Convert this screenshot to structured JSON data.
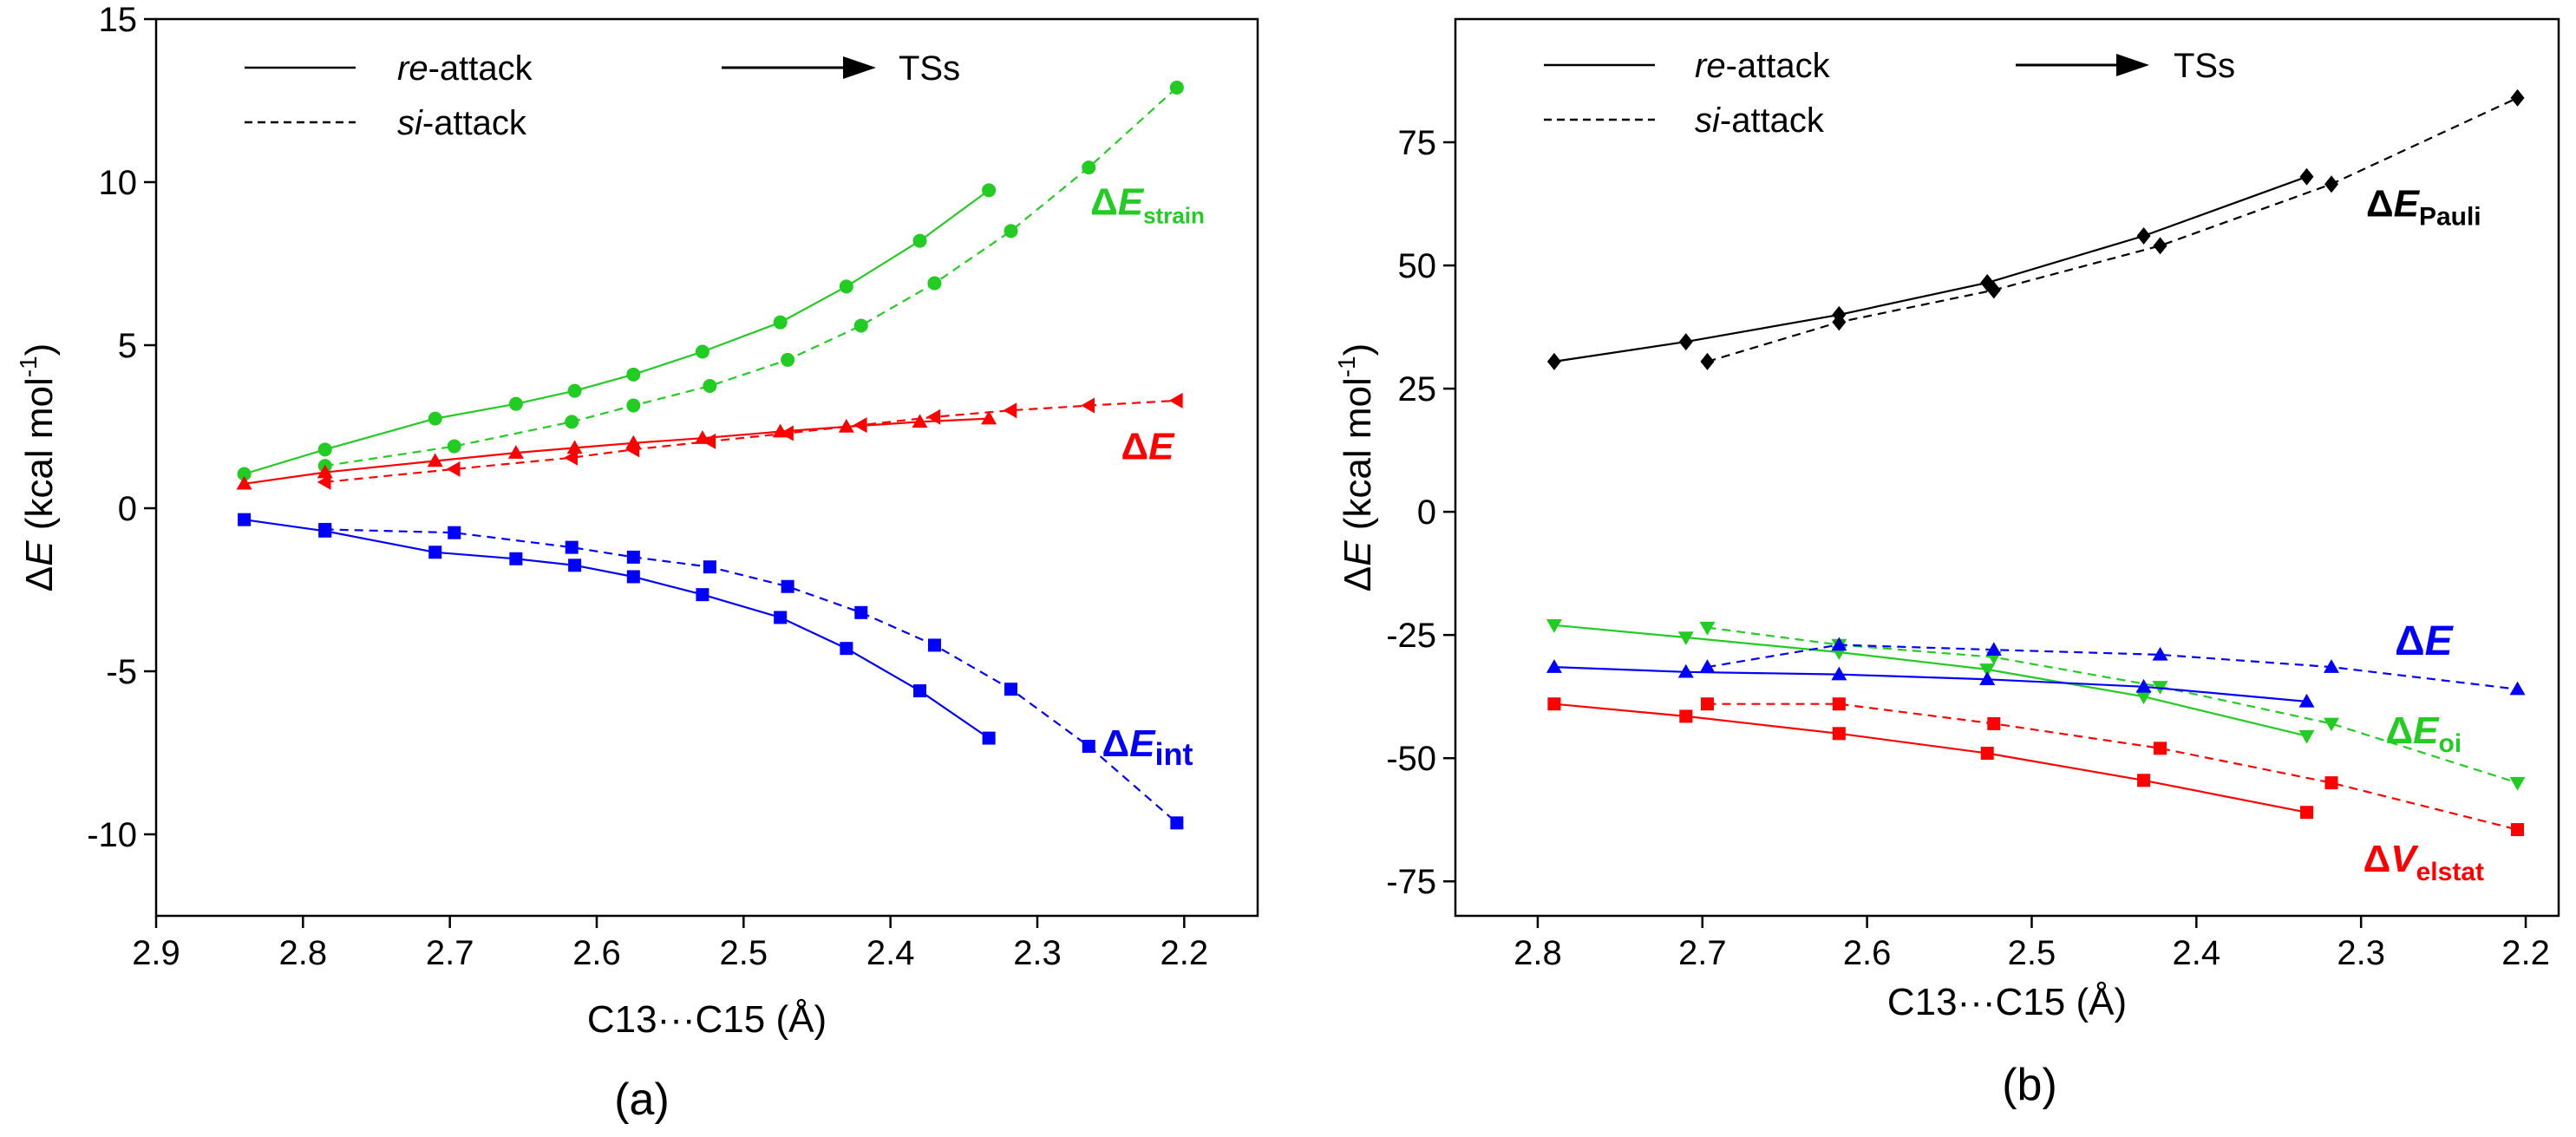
{
  "chart_data": [
    {
      "type": "line",
      "panel_label": "(a)",
      "xlabel": "C13···C15 (Å)",
      "ylabel_parts": [
        "ΔE",
        " (kcal mol",
        "-1",
        ")"
      ],
      "xlim": [
        2.9,
        2.15
      ],
      "ylim": [
        -12.5,
        15
      ],
      "xticks": [
        "2.9",
        "2.8",
        "2.7",
        "2.6",
        "2.5",
        "2.4",
        "2.3",
        "2.2"
      ],
      "xtick_values": [
        2.9,
        2.8,
        2.7,
        2.6,
        2.5,
        2.4,
        2.3,
        2.2
      ],
      "yticks": [
        "-10",
        "-5",
        "0",
        "5",
        "10",
        "15"
      ],
      "ytick_values": [
        -10,
        -5,
        0,
        5,
        10,
        15
      ],
      "legend": {
        "position": "top-left",
        "re_prefix": "re",
        "re_suffix": "-attack",
        "si_prefix": "si",
        "si_suffix": "-attack",
        "arrow_label": "TSs"
      },
      "series": [
        {
          "name": "ΔE_strain (re)",
          "color": "#22cc22",
          "dash": false,
          "marker": "circle",
          "x": [
            2.84,
            2.785,
            2.71,
            2.655,
            2.615,
            2.575,
            2.528,
            2.475,
            2.43,
            2.38,
            2.333
          ],
          "y": [
            1.05,
            1.8,
            2.75,
            3.2,
            3.6,
            4.1,
            4.8,
            5.7,
            6.8,
            8.2,
            9.75
          ]
        },
        {
          "name": "ΔE_strain (si)",
          "color": "#22cc22",
          "dash": true,
          "marker": "circle",
          "x": [
            2.785,
            2.697,
            2.617,
            2.575,
            2.523,
            2.47,
            2.42,
            2.37,
            2.318,
            2.265,
            2.205
          ],
          "y": [
            1.3,
            1.9,
            2.65,
            3.15,
            3.75,
            4.55,
            5.6,
            6.9,
            8.5,
            10.45,
            12.9
          ]
        },
        {
          "name": "ΔE (re)",
          "color": "#ff0000",
          "dash": false,
          "marker": "triangle-up",
          "x": [
            2.84,
            2.785,
            2.71,
            2.655,
            2.615,
            2.575,
            2.528,
            2.475,
            2.43,
            2.38,
            2.333
          ],
          "y": [
            0.75,
            1.1,
            1.45,
            1.7,
            1.85,
            2.0,
            2.15,
            2.35,
            2.5,
            2.65,
            2.75
          ]
        },
        {
          "name": "ΔE (si)",
          "color": "#ff0000",
          "dash": true,
          "marker": "triangle-left",
          "x": [
            2.785,
            2.697,
            2.617,
            2.575,
            2.523,
            2.47,
            2.42,
            2.37,
            2.318,
            2.265,
            2.205
          ],
          "y": [
            0.8,
            1.2,
            1.55,
            1.8,
            2.05,
            2.3,
            2.55,
            2.8,
            3.0,
            3.15,
            3.3
          ]
        },
        {
          "name": "ΔE_int (re)",
          "color": "#0000ff",
          "dash": false,
          "marker": "square",
          "x": [
            2.84,
            2.785,
            2.71,
            2.655,
            2.615,
            2.575,
            2.528,
            2.475,
            2.43,
            2.38,
            2.333
          ],
          "y": [
            -0.35,
            -0.7,
            -1.35,
            -1.55,
            -1.75,
            -2.1,
            -2.65,
            -3.35,
            -4.3,
            -5.6,
            -7.05
          ]
        },
        {
          "name": "ΔE_int (si)",
          "color": "#0000ff",
          "dash": true,
          "marker": "square",
          "x": [
            2.785,
            2.697,
            2.617,
            2.575,
            2.523,
            2.47,
            2.42,
            2.37,
            2.318,
            2.265,
            2.205
          ],
          "y": [
            -0.65,
            -0.75,
            -1.2,
            -1.5,
            -1.8,
            -2.4,
            -3.2,
            -4.2,
            -5.55,
            -7.3,
            -9.65
          ]
        }
      ],
      "series_labels": [
        {
          "main": "ΔE",
          "sub": "strain",
          "color": "#22cc22",
          "at": [
            2.225,
            9.0
          ],
          "size": 44,
          "subsize": 26
        },
        {
          "main": "ΔE",
          "sub": "",
          "color": "#ff0000",
          "at": [
            2.225,
            1.5
          ],
          "size": 44,
          "subsize": 26
        },
        {
          "main": "ΔE",
          "sub": "int",
          "color": "#0000ff",
          "at": [
            2.225,
            -7.6
          ],
          "size": 44,
          "subsize": 36
        }
      ]
    },
    {
      "type": "line",
      "panel_label": "(b)",
      "xlabel": "C13···C15 (Å)",
      "ylabel_parts": [
        "ΔE",
        " (kcal mol",
        "-1",
        ")"
      ],
      "xlim": [
        2.85,
        2.18
      ],
      "ylim": [
        -82,
        100
      ],
      "xticks": [
        "2.8",
        "2.7",
        "2.6",
        "2.5",
        "2.4",
        "2.3",
        "2.2"
      ],
      "xtick_values": [
        2.8,
        2.7,
        2.6,
        2.5,
        2.4,
        2.3,
        2.2
      ],
      "yticks": [
        "-75",
        "-50",
        "-25",
        "0",
        "25",
        "50",
        "75"
      ],
      "ytick_values": [
        -75,
        -50,
        -25,
        0,
        25,
        50,
        75
      ],
      "legend": {
        "position": "top-left",
        "re_prefix": "re",
        "re_suffix": "-attack",
        "si_prefix": "si",
        "si_suffix": "-attack",
        "arrow_label": "TSs"
      },
      "series": [
        {
          "name": "ΔE_Pauli (re)",
          "color": "#000000",
          "dash": false,
          "marker": "diamond",
          "x": [
            2.79,
            2.71,
            2.617,
            2.527,
            2.432,
            2.333
          ],
          "y": [
            30.5,
            34.5,
            40.0,
            46.5,
            56.0,
            68.0
          ]
        },
        {
          "name": "ΔE_Pauli (si)",
          "color": "#000000",
          "dash": true,
          "marker": "diamond",
          "x": [
            2.697,
            2.617,
            2.523,
            2.422,
            2.318,
            2.205
          ],
          "y": [
            30.5,
            38.5,
            45.0,
            54.0,
            66.5,
            84.0
          ]
        },
        {
          "name": "ΔE_oi (re)",
          "color": "#22cc22",
          "dash": false,
          "marker": "triangle-down",
          "x": [
            2.79,
            2.71,
            2.617,
            2.527,
            2.432,
            2.333
          ],
          "y": [
            -23.0,
            -25.5,
            -28.5,
            -32.0,
            -37.5,
            -45.5
          ]
        },
        {
          "name": "ΔE_oi (si)",
          "color": "#22cc22",
          "dash": true,
          "marker": "triangle-down",
          "x": [
            2.697,
            2.617,
            2.523,
            2.422,
            2.318,
            2.205
          ],
          "y": [
            -23.5,
            -27.0,
            -29.5,
            -35.5,
            -43.0,
            -55.0
          ]
        },
        {
          "name": "ΔE (re)",
          "color": "#0000ff",
          "dash": false,
          "marker": "triangle-up",
          "x": [
            2.79,
            2.71,
            2.617,
            2.527,
            2.432,
            2.333
          ],
          "y": [
            -31.5,
            -32.5,
            -33.0,
            -34.0,
            -35.5,
            -38.5
          ]
        },
        {
          "name": "ΔE (si)",
          "color": "#0000ff",
          "dash": true,
          "marker": "triangle-up",
          "x": [
            2.697,
            2.617,
            2.523,
            2.422,
            2.318,
            2.205
          ],
          "y": [
            -31.5,
            -27.0,
            -28.0,
            -29.0,
            -31.5,
            -36.0
          ]
        },
        {
          "name": "ΔV_elstat (re)",
          "color": "#ff0000",
          "dash": false,
          "marker": "square",
          "x": [
            2.79,
            2.71,
            2.617,
            2.527,
            2.432,
            2.333
          ],
          "y": [
            -39.0,
            -41.5,
            -45.0,
            -49.0,
            -54.5,
            -61.0
          ]
        },
        {
          "name": "ΔV_elstat (si)",
          "color": "#ff0000",
          "dash": true,
          "marker": "square",
          "x": [
            2.697,
            2.617,
            2.523,
            2.422,
            2.318,
            2.205
          ],
          "y": [
            -39.0,
            -39.0,
            -43.0,
            -48.0,
            -55.0,
            -64.5
          ]
        }
      ],
      "series_labels": [
        {
          "main": "ΔE",
          "sub": "Pauli",
          "color": "#000000",
          "at": [
            2.262,
            60.0
          ],
          "size": 44,
          "subsize": 30
        },
        {
          "main": "ΔE",
          "sub": "",
          "color": "#0000ff",
          "at": [
            2.262,
            -29.0
          ],
          "size": 48,
          "subsize": 30
        },
        {
          "main": "ΔE",
          "sub": "oi",
          "color": "#22cc22",
          "at": [
            2.262,
            -47.0
          ],
          "size": 44,
          "subsize": 30
        },
        {
          "main": "ΔV",
          "sub": "elstat",
          "color": "#ff0000",
          "at": [
            2.262,
            -73.0
          ],
          "size": 44,
          "subsize": 30
        }
      ]
    }
  ]
}
